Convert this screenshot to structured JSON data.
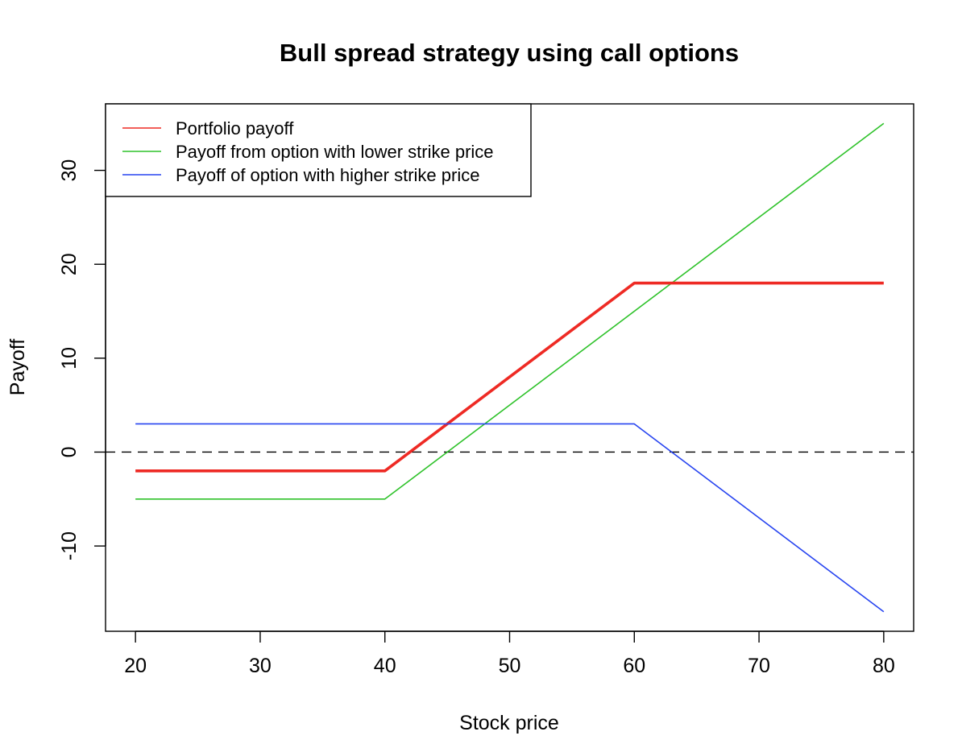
{
  "chart_data": {
    "type": "line",
    "title": "Bull spread strategy using call options",
    "xlabel": "Stock price",
    "ylabel": "Payoff",
    "xlim": [
      17.6,
      82.4
    ],
    "ylim": [
      -19.08,
      37.08
    ],
    "xticks": [
      20,
      30,
      40,
      50,
      60,
      70,
      80
    ],
    "yticks": [
      -10,
      0,
      10,
      20,
      30
    ],
    "grid": false,
    "legend_position": "top-left",
    "reference_line": {
      "y": 0,
      "style": "dashed",
      "color": "#000000"
    },
    "series": [
      {
        "name": "Portfolio payoff",
        "color": "#ee2a24",
        "width": 3.6,
        "x": [
          20,
          40,
          60,
          80
        ],
        "y": [
          -2,
          -2,
          18,
          18
        ]
      },
      {
        "name": "Payoff from option with lower strike price",
        "color": "#2ec22a",
        "width": 1.6,
        "x": [
          20,
          40,
          80
        ],
        "y": [
          -5,
          -5,
          35
        ]
      },
      {
        "name": "Payoff of option with higher strike price",
        "color": "#2744f0",
        "width": 1.6,
        "x": [
          20,
          60,
          80
        ],
        "y": [
          3,
          3,
          -17
        ]
      }
    ]
  }
}
